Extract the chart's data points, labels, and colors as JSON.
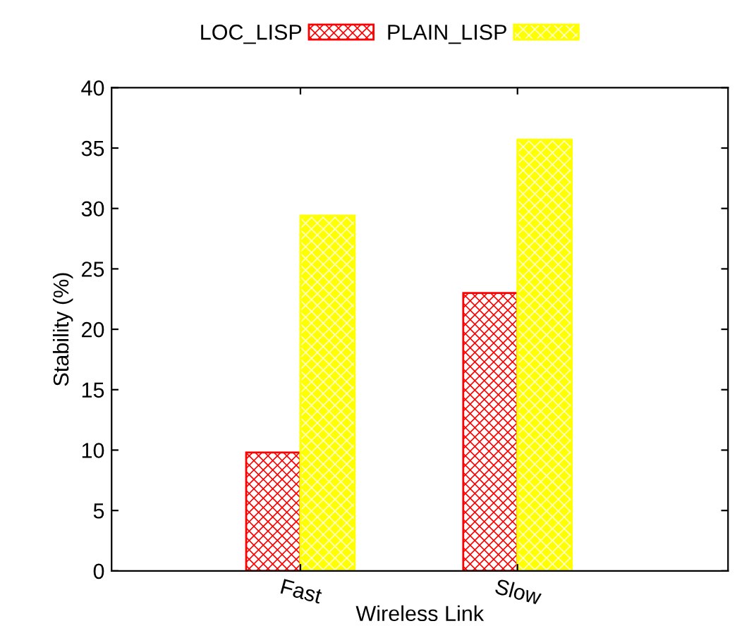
{
  "chart_data": {
    "type": "bar",
    "xlabel": "Wireless Link",
    "ylabel": "Stability (%)",
    "categories": [
      "Fast",
      "Slow"
    ],
    "series": [
      {
        "name": "LOC_LISP",
        "color": "#ff0000",
        "values": [
          9.8,
          23.0
        ]
      },
      {
        "name": "PLAIN_LISP",
        "color": "#ffff00",
        "values": [
          29.4,
          35.7
        ]
      }
    ],
    "ylim": [
      0,
      40
    ],
    "yticks": [
      0,
      5,
      10,
      15,
      20,
      25,
      30,
      35,
      40
    ],
    "grid": false,
    "legend": "top"
  }
}
